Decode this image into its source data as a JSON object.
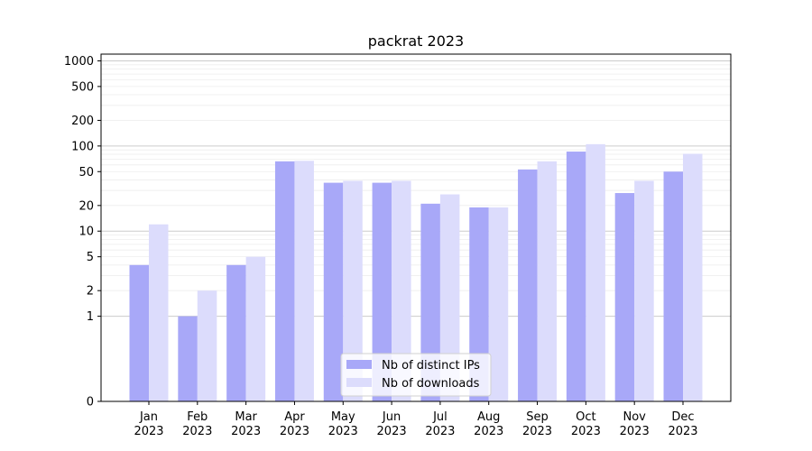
{
  "chart_data": {
    "type": "bar",
    "title": "packrat 2023",
    "xlabel": "",
    "ylabel": "",
    "y_scale": "symlog",
    "ylim": [
      0,
      1200
    ],
    "y_ticks": [
      0,
      1,
      2,
      5,
      10,
      20,
      50,
      100,
      200,
      500,
      1000
    ],
    "y_tick_labels": [
      "0",
      "1",
      "2",
      "5",
      "10",
      "20",
      "50",
      "100",
      "200",
      "500",
      "1000"
    ],
    "grid": true,
    "legend_position": "bottom-center",
    "categories": [
      [
        "Jan",
        "2023"
      ],
      [
        "Feb",
        "2023"
      ],
      [
        "Mar",
        "2023"
      ],
      [
        "Apr",
        "2023"
      ],
      [
        "May",
        "2023"
      ],
      [
        "Jun",
        "2023"
      ],
      [
        "Jul",
        "2023"
      ],
      [
        "Aug",
        "2023"
      ],
      [
        "Sep",
        "2023"
      ],
      [
        "Oct",
        "2023"
      ],
      [
        "Nov",
        "2023"
      ],
      [
        "Dec",
        "2023"
      ]
    ],
    "series": [
      {
        "name": "Nb of distinct IPs",
        "color": "#a8a8f8",
        "values": [
          4,
          1,
          4,
          66,
          37,
          37,
          21,
          19,
          53,
          86,
          28,
          50
        ]
      },
      {
        "name": "Nb of downloads",
        "color": "#dcdcfc",
        "values": [
          12,
          2,
          5,
          67,
          39,
          39,
          27,
          19,
          66,
          105,
          39,
          81
        ]
      }
    ]
  }
}
